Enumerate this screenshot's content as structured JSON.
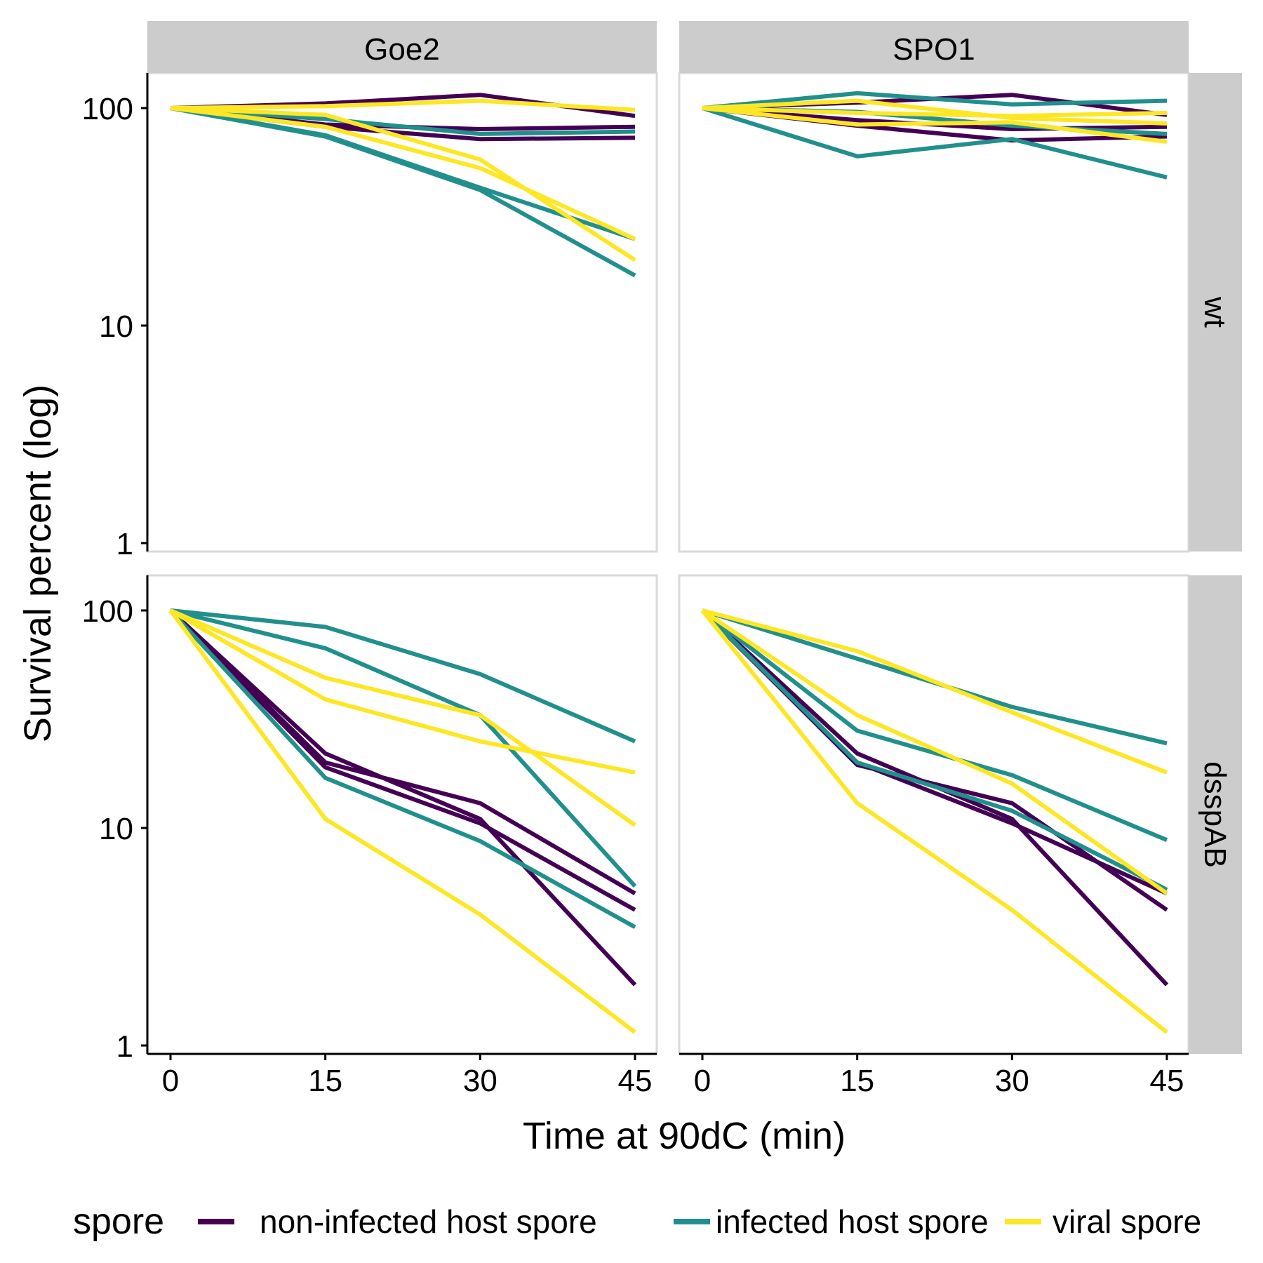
{
  "chart_data": {
    "type": "line",
    "facet_columns": [
      "Goe2",
      "SPO1"
    ],
    "facet_rows": [
      "wt",
      "dsspAB"
    ],
    "xlabel": "Time at 90dC (min)",
    "ylabel": "Survival percent (log)",
    "x_ticks": [
      0,
      15,
      30,
      45
    ],
    "y_ticks": [
      1,
      10,
      100
    ],
    "y_tick_labels": [
      "1",
      "10",
      "100"
    ],
    "y_scale": "log",
    "ylim": [
      1,
      150
    ],
    "xlim": [
      0,
      45
    ],
    "grid": false,
    "legend": {
      "title": "spore",
      "position": "bottom",
      "entries": [
        {
          "label": "non-infected host spore",
          "color": "#440154"
        },
        {
          "label": "infected host spore",
          "color": "#21908C"
        },
        {
          "label": "viral spore",
          "color": "#FDE725"
        }
      ]
    },
    "x": [
      0,
      15,
      30,
      45
    ],
    "panels": [
      {
        "col": "Goe2",
        "row": "wt",
        "series": [
          {
            "spore": "non-infected host spore",
            "values": [
              100,
              105,
              115,
              92
            ]
          },
          {
            "spore": "non-infected host spore",
            "values": [
              100,
              82,
              72,
              73
            ]
          },
          {
            "spore": "non-infected host spore",
            "values": [
              100,
              84,
              80,
              82
            ]
          },
          {
            "spore": "infected host spore",
            "values": [
              100,
              89,
              76,
              78
            ]
          },
          {
            "spore": "infected host spore",
            "values": [
              100,
              75,
              43,
              25
            ]
          },
          {
            "spore": "infected host spore",
            "values": [
              100,
              74,
              42,
              17
            ]
          },
          {
            "spore": "viral spore",
            "values": [
              100,
              102,
              108,
              98
            ]
          },
          {
            "spore": "viral spore",
            "values": [
              100,
              93,
              58,
              20
            ]
          },
          {
            "spore": "viral spore",
            "values": [
              100,
              82,
              53,
              25
            ]
          }
        ]
      },
      {
        "col": "SPO1",
        "row": "wt",
        "series": [
          {
            "spore": "non-infected host spore",
            "values": [
              100,
              106,
              115,
              93
            ]
          },
          {
            "spore": "non-infected host spore",
            "values": [
              100,
              88,
              80,
              82
            ]
          },
          {
            "spore": "non-infected host spore",
            "values": [
              100,
              83,
              71,
              74
            ]
          },
          {
            "spore": "infected host spore",
            "values": [
              100,
              117,
              104,
              108
            ]
          },
          {
            "spore": "infected host spore",
            "values": [
              100,
              60,
              72,
              48
            ]
          },
          {
            "spore": "infected host spore",
            "values": [
              100,
              96,
              83,
              76
            ]
          },
          {
            "spore": "viral spore",
            "values": [
              100,
              108,
              90,
              85
            ]
          },
          {
            "spore": "viral spore",
            "values": [
              100,
              84,
              86,
              70
            ]
          },
          {
            "spore": "viral spore",
            "values": [
              100,
              95,
              92,
              95
            ]
          }
        ]
      },
      {
        "col": "Goe2",
        "row": "dsspAB",
        "series": [
          {
            "spore": "non-infected host spore",
            "values": [
              100,
              22,
              11,
              1.9
            ]
          },
          {
            "spore": "non-infected host spore",
            "values": [
              100,
              20,
              13,
              5
            ]
          },
          {
            "spore": "non-infected host spore",
            "values": [
              100,
              19,
              10.5,
              4.2
            ]
          },
          {
            "spore": "infected host spore",
            "values": [
              100,
              84,
              51,
              25
            ]
          },
          {
            "spore": "infected host spore",
            "values": [
              100,
              67,
              33,
              5.4
            ]
          },
          {
            "spore": "infected host spore",
            "values": [
              100,
              17,
              8.7,
              3.5
            ]
          },
          {
            "spore": "viral spore",
            "values": [
              100,
              49,
              33,
              10.3
            ]
          },
          {
            "spore": "viral spore",
            "values": [
              100,
              39,
              25,
              18
            ]
          },
          {
            "spore": "viral spore",
            "values": [
              100,
              11,
              4,
              1.15
            ]
          }
        ]
      },
      {
        "col": "SPO1",
        "row": "dsspAB",
        "series": [
          {
            "spore": "non-infected host spore",
            "values": [
              100,
              22,
              11,
              1.9
            ]
          },
          {
            "spore": "non-infected host spore",
            "values": [
              100,
              19.5,
              13,
              4.2
            ]
          },
          {
            "spore": "non-infected host spore",
            "values": [
              100,
              20,
              10.5,
              5
            ]
          },
          {
            "spore": "infected host spore",
            "values": [
              100,
              60,
              36,
              24.5
            ]
          },
          {
            "spore": "infected host spore",
            "values": [
              100,
              28,
              17.5,
              8.8
            ]
          },
          {
            "spore": "infected host spore",
            "values": [
              100,
              20,
              12,
              5.2
            ]
          },
          {
            "spore": "viral spore",
            "values": [
              100,
              65,
              34,
              18
            ]
          },
          {
            "spore": "viral spore",
            "values": [
              100,
              33,
              16,
              5
            ]
          },
          {
            "spore": "viral spore",
            "values": [
              100,
              13,
              4.2,
              1.15
            ]
          }
        ]
      }
    ]
  }
}
